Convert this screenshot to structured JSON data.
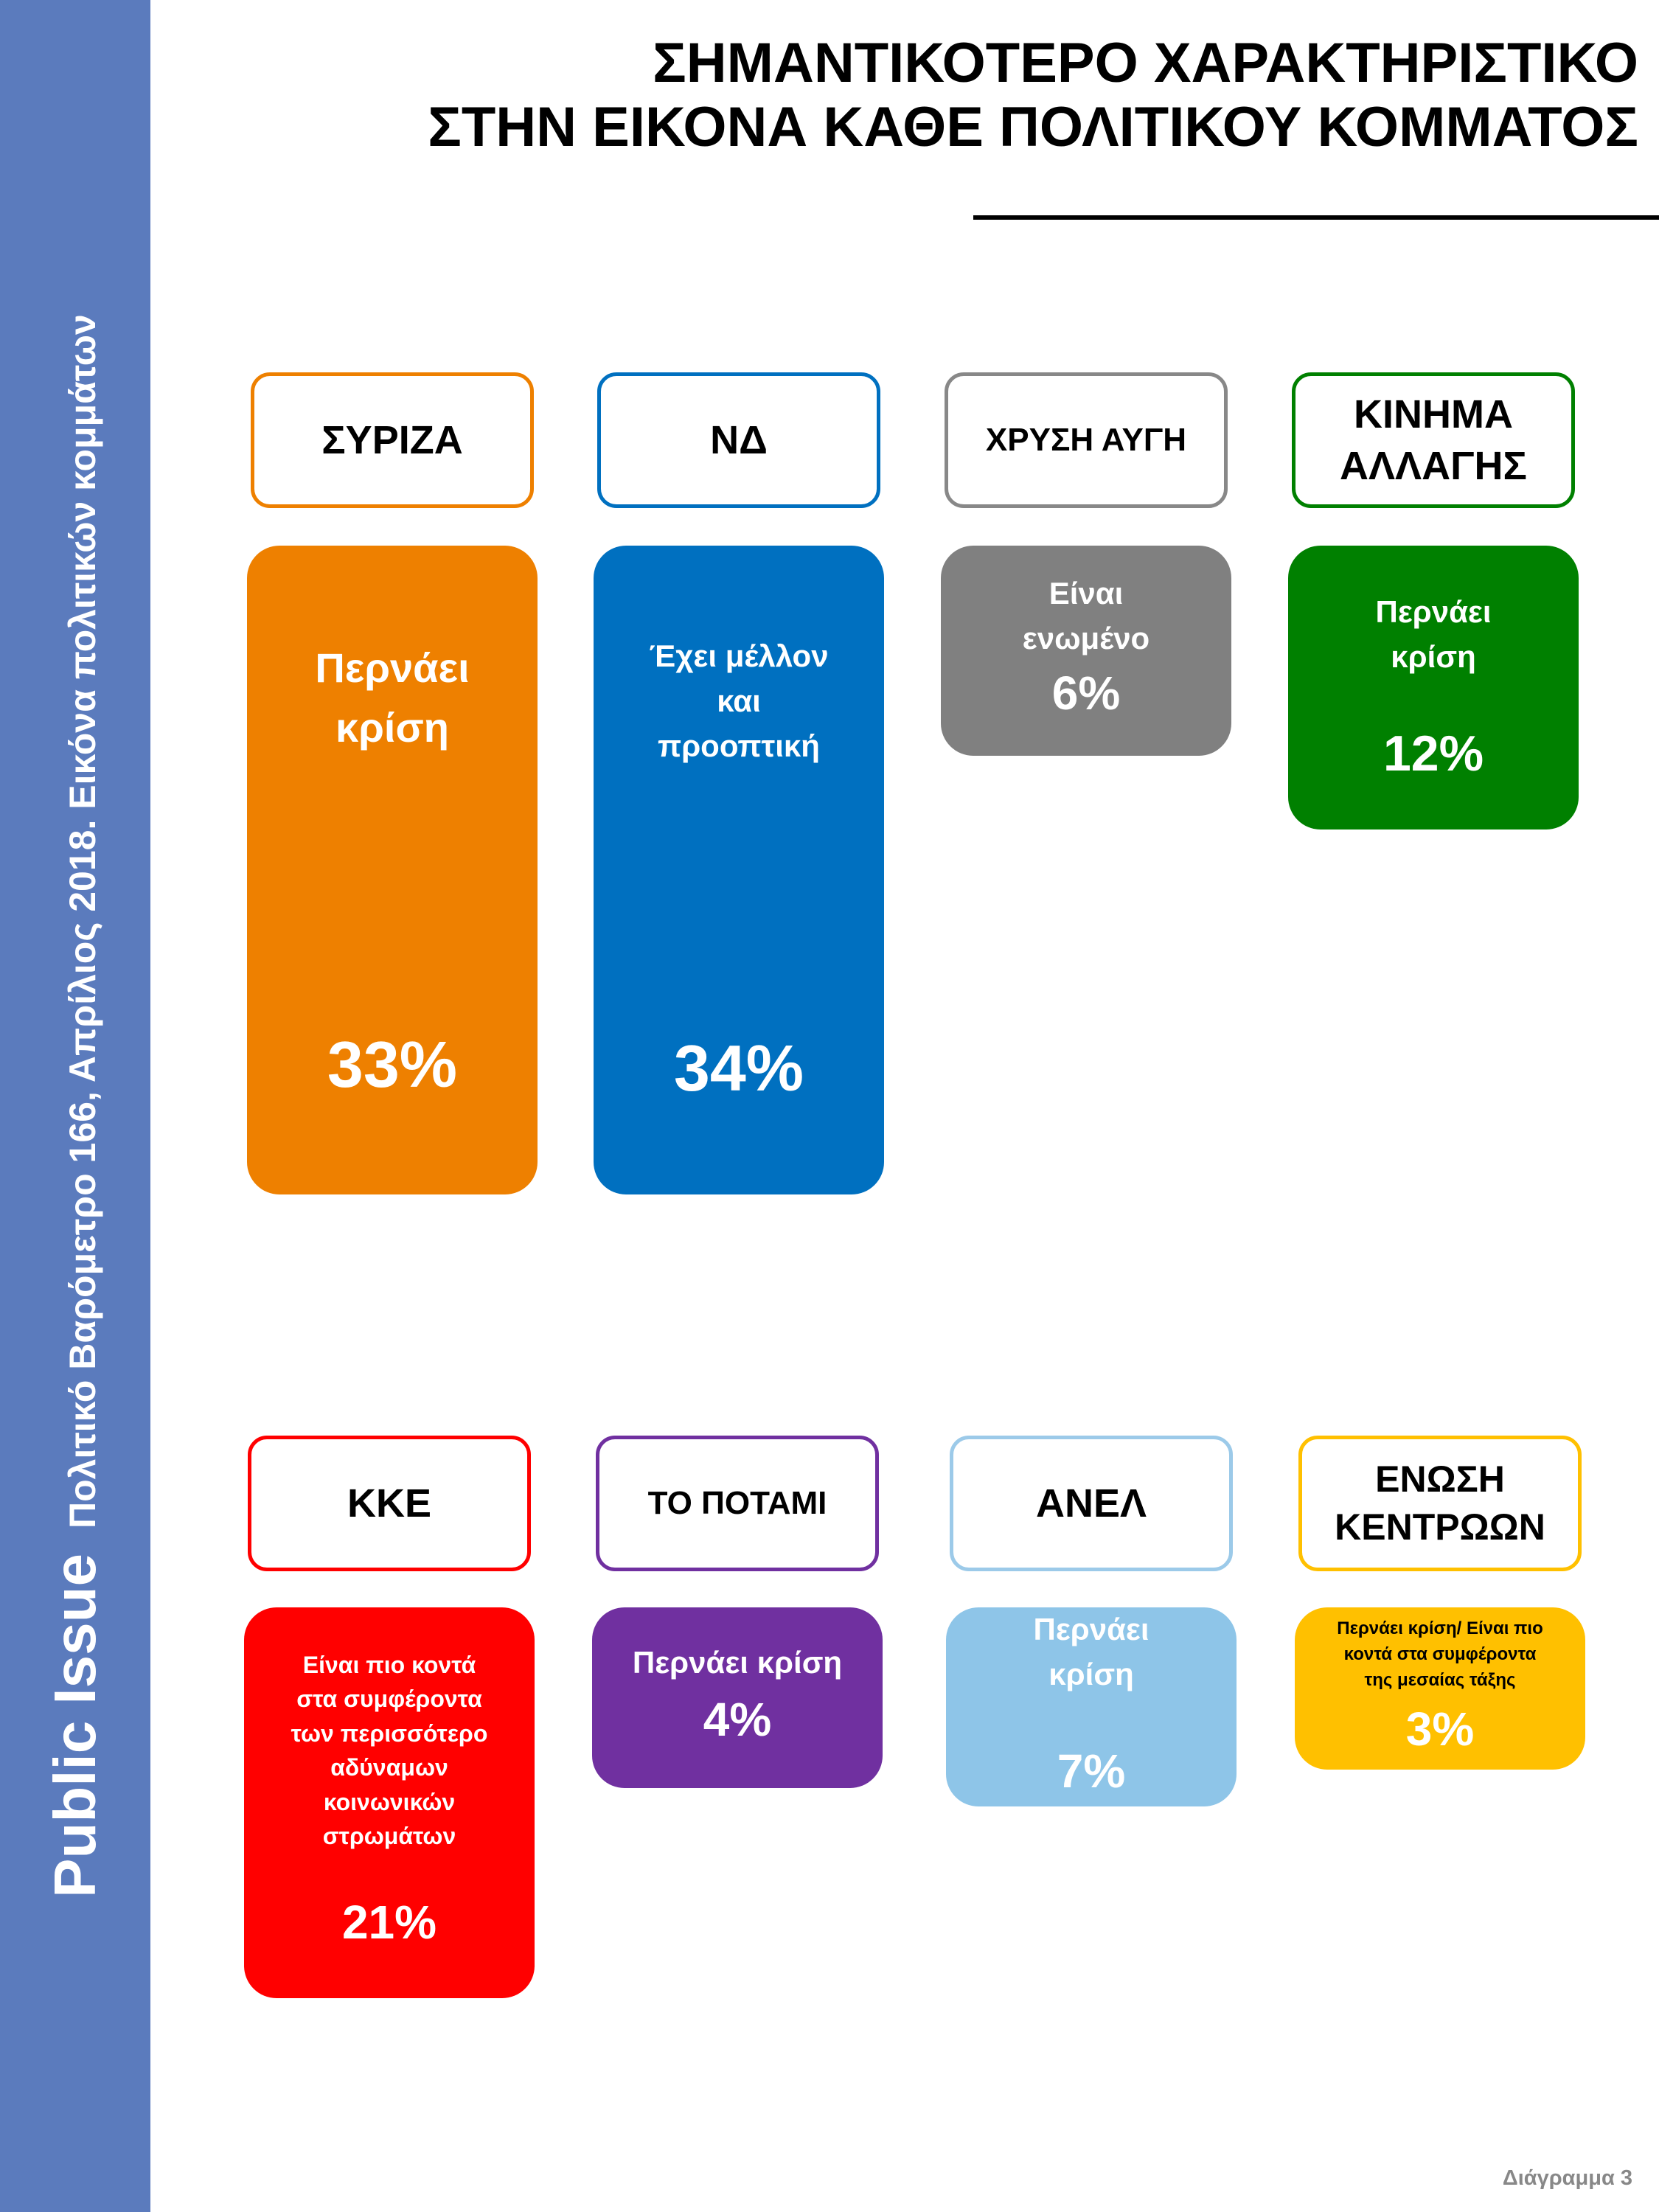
{
  "sidebar": {
    "brand": "Public Issue",
    "subtitle": "Πολιτικό Βαρόμετρο 166, Απρίλιος 2018. Εικόνα πολιτικών κομμάτων"
  },
  "chart_data": {
    "type": "bar",
    "title": "ΣΗΜΑΝΤΙΚΟΤΕΡΟ ΧΑΡΑΚΤΗΡΙΣΤΙΚΟ\nΣΤΗΝ ΕΙΚΟΝΑ ΚΑΘΕ ΠΟΛΙΤΙΚΟΥ ΚΟΜΜΑΤΟΣ",
    "value_unit": "%",
    "categories": [
      "ΣΥΡΙΖΑ",
      "ΝΔ",
      "ΧΡΥΣΗ ΑΥΓΗ",
      "ΚΙΝΗΜΑ ΑΛΛΑΓΗΣ",
      "ΚΚΕ",
      "ΤΟ ΠΟΤΑΜΙ",
      "ΑΝΕΛ",
      "ΕΝΩΣΗ ΚΕΝΤΡΩΩΝ"
    ],
    "values": [
      33,
      34,
      6,
      12,
      21,
      4,
      7,
      3
    ],
    "parties": [
      {
        "label": "ΣΥΡΙΖΑ",
        "characteristic": "Περνάει\nκρίση",
        "value": 33,
        "value_label": "33%",
        "color": "#ee8000",
        "label_text_color": "#ffffff"
      },
      {
        "label": "ΝΔ",
        "characteristic": "Έχει μέλλον\nκαι\nπροοπτική",
        "value": 34,
        "value_label": "34%",
        "color": "#0070c0",
        "label_text_color": "#ffffff"
      },
      {
        "label": "ΧΡΥΣΗ ΑΥΓΗ",
        "characteristic": "Είναι\nενωμένο",
        "value": 6,
        "value_label": "6%",
        "color": "#808080",
        "label_text_color": "#ffffff"
      },
      {
        "label": "ΚΙΝΗΜΑ\nΑΛΛΑΓΗΣ",
        "characteristic": "Περνάει\nκρίση",
        "value": 12,
        "value_label": "12%",
        "color": "#008000",
        "label_text_color": "#ffffff"
      },
      {
        "label": "ΚΚΕ",
        "characteristic": "Είναι πιο κοντά\nστα συμφέροντα\nτων περισσότερο\nαδύναμων\nκοινωνικών\nστρωμάτων",
        "value": 21,
        "value_label": "21%",
        "color": "#ff0000",
        "label_text_color": "#ffffff"
      },
      {
        "label": "ΤΟ ΠΟΤΑΜΙ",
        "characteristic": "Περνάει κρίση",
        "value": 4,
        "value_label": "4%",
        "color": "#7030a0",
        "label_text_color": "#ffffff"
      },
      {
        "label": "ΑΝΕΛ",
        "characteristic": "Περνάει\nκρίση",
        "value": 7,
        "value_label": "7%",
        "color": "#8ec5e8",
        "label_text_color": "#ffffff"
      },
      {
        "label": "ΕΝΩΣΗ\nΚΕΝΤΡΩΩΝ",
        "characteristic": "Περνάει κρίση/ Είναι πιο\nκοντά στα συμφέροντα\nτης μεσαίας τάξης",
        "value": 3,
        "value_label": "3%",
        "color": "#ffc000",
        "label_text_color": "#000000"
      }
    ]
  },
  "footer": {
    "caption": "Διάγραμμα 3"
  }
}
